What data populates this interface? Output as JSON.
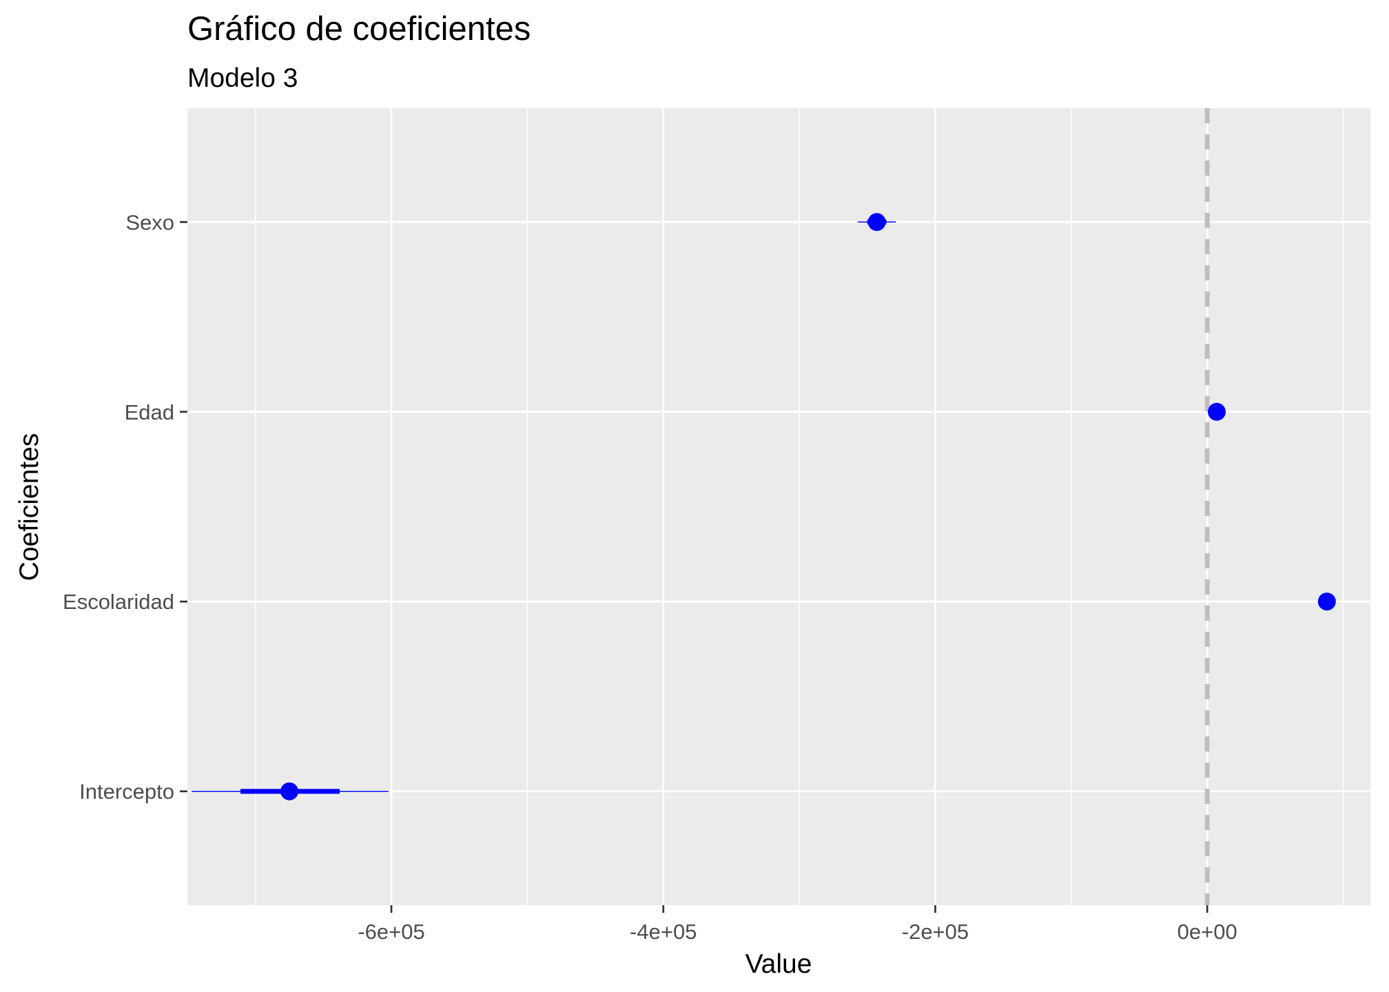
{
  "chart_data": {
    "type": "scatter",
    "title": "Gráfico de coeficientes",
    "subtitle": "Modelo 3",
    "xlabel": "Value",
    "ylabel": "Coeficientes",
    "xlim": [
      -750000,
      120000
    ],
    "x_ticks": [
      -600000,
      -400000,
      -200000,
      0
    ],
    "x_tick_labels": [
      "-6e+05",
      "-4e+05",
      "-2e+05",
      "0e+00"
    ],
    "x_minor_ticks": [
      -700000,
      -500000,
      -300000,
      -100000,
      100000
    ],
    "categories": [
      "Sexo",
      "Edad",
      "Escolaridad",
      "Intercepto"
    ],
    "points": [
      {
        "label": "Sexo",
        "value": -243000,
        "inner": [
          -250000,
          -236000
        ],
        "outer": [
          -257000,
          -229000
        ]
      },
      {
        "label": "Edad",
        "value": 7000,
        "inner": [
          5000,
          9000
        ],
        "outer": [
          3000,
          11000
        ]
      },
      {
        "label": "Escolaridad",
        "value": 88000,
        "inner": [
          86000,
          90000
        ],
        "outer": [
          84000,
          92000
        ]
      },
      {
        "label": "Intercepto",
        "value": -675000,
        "inner": [
          -711000,
          -638000
        ],
        "outer": [
          -747000,
          -602000
        ]
      }
    ],
    "reference_line": {
      "x": 0,
      "style": "dashed",
      "color": "#bebebe"
    },
    "point_color": "#0000ff",
    "panel_background": "#ebebeb",
    "grid_color": "#ffffff",
    "grid": true,
    "legend": "none"
  }
}
